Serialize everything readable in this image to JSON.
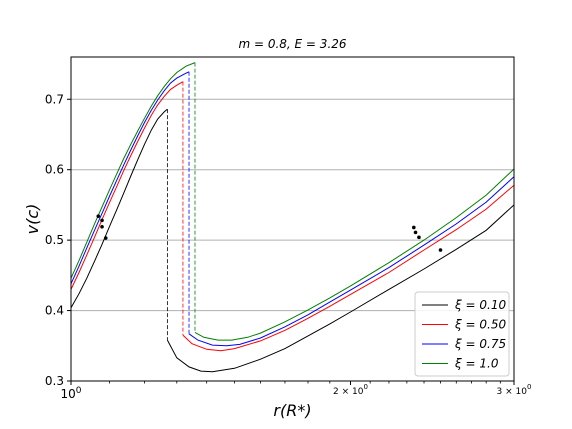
{
  "chart_data": {
    "type": "line",
    "title": "m = 0.8, E = 3.26",
    "xlabel": "r(R*)",
    "ylabel": "v(c)",
    "xscale": "log",
    "xlim": [
      1.0,
      3.0
    ],
    "ylim": [
      0.3,
      0.76
    ],
    "grid": "y-major",
    "legend_position": "lower-right",
    "x_tick_labels": [
      {
        "x": 1.0,
        "label": "10^0"
      },
      {
        "x": 2.0,
        "label": "2 × 10^0"
      },
      {
        "x": 3.0,
        "label": "3 × 10^0"
      }
    ],
    "y_ticks": [
      0.3,
      0.4,
      0.5,
      0.6,
      0.7
    ],
    "series": [
      {
        "name": "ξ = 0.10",
        "color": "#000000",
        "branch1": [
          [
            1.0,
            0.404
          ],
          [
            1.02,
            0.424
          ],
          [
            1.04,
            0.446
          ],
          [
            1.06,
            0.47
          ],
          [
            1.08,
            0.494
          ],
          [
            1.1,
            0.519
          ],
          [
            1.12,
            0.543
          ],
          [
            1.14,
            0.567
          ],
          [
            1.16,
            0.591
          ],
          [
            1.18,
            0.614
          ],
          [
            1.2,
            0.636
          ],
          [
            1.22,
            0.656
          ],
          [
            1.24,
            0.672
          ],
          [
            1.26,
            0.682
          ],
          [
            1.27,
            0.686
          ]
        ],
        "jump_at": 1.27,
        "branch2": [
          [
            1.27,
            0.358
          ],
          [
            1.3,
            0.333
          ],
          [
            1.34,
            0.32
          ],
          [
            1.38,
            0.314
          ],
          [
            1.42,
            0.313
          ],
          [
            1.5,
            0.318
          ],
          [
            1.6,
            0.331
          ],
          [
            1.7,
            0.346
          ],
          [
            1.8,
            0.364
          ],
          [
            1.9,
            0.381
          ],
          [
            2.0,
            0.398
          ],
          [
            2.2,
            0.43
          ],
          [
            2.4,
            0.459
          ],
          [
            2.6,
            0.487
          ],
          [
            2.8,
            0.514
          ],
          [
            3.0,
            0.55
          ]
        ],
        "markers": [
          [
            1.09,
            0.503
          ],
          [
            2.5,
            0.486
          ]
        ]
      },
      {
        "name": "ξ = 0.50",
        "color": "#ff0000",
        "branch1": [
          [
            1.0,
            0.43
          ],
          [
            1.02,
            0.454
          ],
          [
            1.04,
            0.479
          ],
          [
            1.06,
            0.504
          ],
          [
            1.08,
            0.529
          ],
          [
            1.1,
            0.553
          ],
          [
            1.12,
            0.576
          ],
          [
            1.14,
            0.599
          ],
          [
            1.16,
            0.62
          ],
          [
            1.18,
            0.64
          ],
          [
            1.2,
            0.659
          ],
          [
            1.22,
            0.677
          ],
          [
            1.24,
            0.692
          ],
          [
            1.26,
            0.704
          ],
          [
            1.28,
            0.714
          ],
          [
            1.3,
            0.72
          ],
          [
            1.32,
            0.725
          ]
        ],
        "jump_at": 1.32,
        "branch2": [
          [
            1.32,
            0.365
          ],
          [
            1.35,
            0.353
          ],
          [
            1.4,
            0.345
          ],
          [
            1.45,
            0.343
          ],
          [
            1.5,
            0.346
          ],
          [
            1.6,
            0.357
          ],
          [
            1.7,
            0.372
          ],
          [
            1.8,
            0.389
          ],
          [
            1.9,
            0.406
          ],
          [
            2.0,
            0.423
          ],
          [
            2.2,
            0.454
          ],
          [
            2.4,
            0.486
          ],
          [
            2.6,
            0.515
          ],
          [
            2.8,
            0.544
          ],
          [
            3.0,
            0.578
          ]
        ],
        "markers": [
          [
            1.08,
            0.519
          ],
          [
            2.37,
            0.504
          ]
        ]
      },
      {
        "name": "ξ = 0.75",
        "color": "#0000ff",
        "branch1": [
          [
            1.0,
            0.438
          ],
          [
            1.02,
            0.463
          ],
          [
            1.04,
            0.489
          ],
          [
            1.06,
            0.514
          ],
          [
            1.08,
            0.538
          ],
          [
            1.1,
            0.562
          ],
          [
            1.12,
            0.585
          ],
          [
            1.14,
            0.607
          ],
          [
            1.16,
            0.628
          ],
          [
            1.18,
            0.648
          ],
          [
            1.2,
            0.667
          ],
          [
            1.22,
            0.684
          ],
          [
            1.24,
            0.699
          ],
          [
            1.26,
            0.712
          ],
          [
            1.28,
            0.723
          ],
          [
            1.3,
            0.73
          ],
          [
            1.33,
            0.737
          ],
          [
            1.34,
            0.739
          ]
        ],
        "jump_at": 1.34,
        "branch2": [
          [
            1.34,
            0.367
          ],
          [
            1.37,
            0.358
          ],
          [
            1.42,
            0.351
          ],
          [
            1.47,
            0.35
          ],
          [
            1.52,
            0.352
          ],
          [
            1.6,
            0.361
          ],
          [
            1.7,
            0.377
          ],
          [
            1.8,
            0.394
          ],
          [
            1.9,
            0.412
          ],
          [
            2.0,
            0.429
          ],
          [
            2.2,
            0.461
          ],
          [
            2.4,
            0.493
          ],
          [
            2.6,
            0.523
          ],
          [
            2.8,
            0.554
          ],
          [
            3.0,
            0.59
          ]
        ],
        "markers": [
          [
            1.08,
            0.528
          ],
          [
            2.35,
            0.511
          ]
        ]
      },
      {
        "name": "ξ = 1.0",
        "color": "#008000",
        "branch1": [
          [
            1.0,
            0.446
          ],
          [
            1.02,
            0.471
          ],
          [
            1.04,
            0.497
          ],
          [
            1.06,
            0.523
          ],
          [
            1.08,
            0.547
          ],
          [
            1.1,
            0.571
          ],
          [
            1.12,
            0.594
          ],
          [
            1.14,
            0.616
          ],
          [
            1.16,
            0.636
          ],
          [
            1.18,
            0.655
          ],
          [
            1.2,
            0.673
          ],
          [
            1.22,
            0.69
          ],
          [
            1.24,
            0.705
          ],
          [
            1.26,
            0.718
          ],
          [
            1.28,
            0.729
          ],
          [
            1.3,
            0.738
          ],
          [
            1.33,
            0.747
          ],
          [
            1.36,
            0.752
          ]
        ],
        "jump_at": 1.36,
        "branch2": [
          [
            1.36,
            0.369
          ],
          [
            1.39,
            0.362
          ],
          [
            1.44,
            0.358
          ],
          [
            1.49,
            0.358
          ],
          [
            1.55,
            0.362
          ],
          [
            1.6,
            0.368
          ],
          [
            1.7,
            0.384
          ],
          [
            1.8,
            0.401
          ],
          [
            1.9,
            0.418
          ],
          [
            2.0,
            0.435
          ],
          [
            2.2,
            0.468
          ],
          [
            2.4,
            0.5
          ],
          [
            2.6,
            0.532
          ],
          [
            2.8,
            0.564
          ],
          [
            3.0,
            0.601
          ]
        ],
        "markers": [
          [
            1.07,
            0.534
          ],
          [
            2.34,
            0.518
          ]
        ]
      }
    ]
  }
}
